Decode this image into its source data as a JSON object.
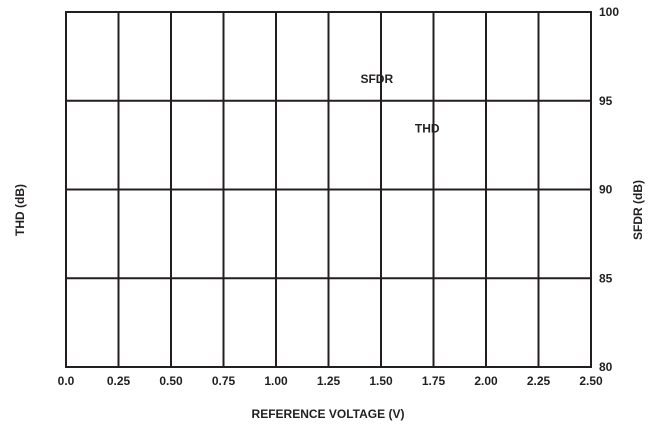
{
  "chart_data": {
    "type": "line",
    "title": "",
    "xlabel": "REFERENCE VOLTAGE (V)",
    "ylabel_left": "THD (dB)",
    "ylabel_right": "SFDR (dB)",
    "xlim": [
      0,
      2.5
    ],
    "ylim_right": [
      80,
      100
    ],
    "x_ticks": [
      "0.0",
      "0.25",
      "0.50",
      "0.75",
      "1.00",
      "1.25",
      "1.50",
      "1.75",
      "2.00",
      "2.25",
      "2.50"
    ],
    "y_right_ticks": [
      "80",
      "85",
      "90",
      "95",
      "100"
    ],
    "grid": true,
    "series": [
      {
        "name": "SFDR",
        "values": []
      },
      {
        "name": "THD",
        "values": []
      }
    ],
    "annotations": [
      {
        "text": "SFDR",
        "x": 1.48,
        "y": 96.0
      },
      {
        "text": "THD",
        "x": 1.72,
        "y": 93.2
      }
    ]
  }
}
